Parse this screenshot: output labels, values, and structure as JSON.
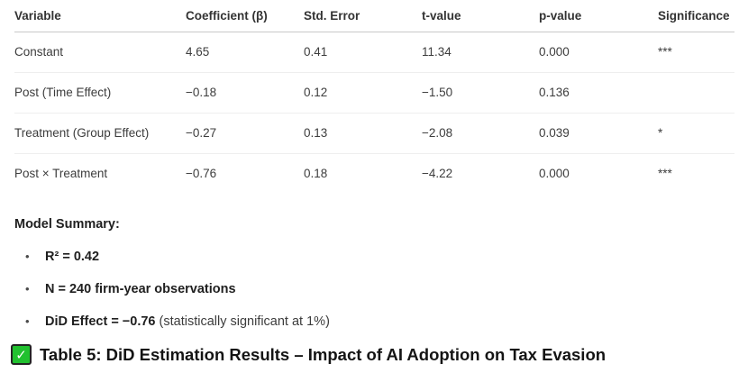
{
  "table": {
    "columns": [
      "Variable",
      "Coefficient (β)",
      "Std. Error",
      "t-value",
      "p-value",
      "Significance"
    ],
    "rows": [
      {
        "variable": "Constant",
        "coefficient": "4.65",
        "std_error": "0.41",
        "t_value": "11.34",
        "p_value": "0.000",
        "significance": "***"
      },
      {
        "variable": "Post (Time Effect)",
        "coefficient": "−0.18",
        "std_error": "0.12",
        "t_value": "−1.50",
        "p_value": "0.136",
        "significance": ""
      },
      {
        "variable": "Treatment (Group Effect)",
        "coefficient": "−0.27",
        "std_error": "0.13",
        "t_value": "−2.08",
        "p_value": "0.039",
        "significance": "*"
      },
      {
        "variable": "Post × Treatment",
        "coefficient": "−0.76",
        "std_error": "0.18",
        "t_value": "−4.22",
        "p_value": "0.000",
        "significance": "***"
      }
    ]
  },
  "model_summary": {
    "heading": "Model Summary:",
    "bullets": [
      {
        "bold": "R² = 0.42",
        "regular": ""
      },
      {
        "bold": "N = 240 firm-year observations",
        "regular": ""
      },
      {
        "bold": "DiD Effect = −0.76",
        "regular": " (statistically significant at 1%)"
      }
    ]
  },
  "caption": {
    "text": "Table 5: DiD Estimation Results – Impact of AI Adoption on Tax Evasion"
  },
  "icons": {
    "bullet_glyph": "•",
    "check_glyph": "✓"
  },
  "colors": {
    "check_green": "#21c12f",
    "check_border": "#242424",
    "header_rule": "#c9c9c9",
    "row_rule": "#eeeeee",
    "body_text": "#3d3d3d",
    "bold_text": "#1f1f1f"
  }
}
